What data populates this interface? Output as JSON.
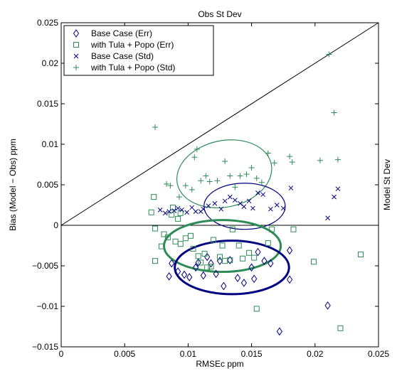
{
  "chart_data": {
    "type": "scatter",
    "title": "Obs St Dev",
    "xlabel": "RMSEc ppm",
    "ylabel": "Bias (Model − Obs) ppm",
    "y2label": "Model St Dev",
    "xlim": [
      0,
      0.025
    ],
    "ylim": [
      -0.015,
      0.025
    ],
    "xticks": [
      0,
      0.005,
      0.01,
      0.015,
      0.02,
      0.025
    ],
    "xtick_labels": [
      "0",
      "0.005",
      "0.01",
      "0.015",
      "0.02",
      "0.025"
    ],
    "yticks": [
      -0.015,
      -0.01,
      -0.005,
      0,
      0.005,
      0.01,
      0.015,
      0.02,
      0.025
    ],
    "ytick_labels": [
      "−0.015",
      "−0.01",
      "−0.005",
      "0",
      "0.005",
      "0.01",
      "0.015",
      "0.02",
      "0.025"
    ],
    "grid": false,
    "legend_position": "top-left",
    "reference_lines": [
      {
        "kind": "diagonal",
        "from": [
          0,
          0
        ],
        "to": [
          0.025,
          0.025
        ],
        "color": "#000000"
      },
      {
        "kind": "horizontal",
        "y": 0,
        "color": "#000000"
      }
    ],
    "series": [
      {
        "name": "Base Case (Err)",
        "marker": "diamond",
        "color": "#000080",
        "points": [
          [
            0.0087,
            -0.0047
          ],
          [
            0.0085,
            -0.0063
          ],
          [
            0.0092,
            -0.0057
          ],
          [
            0.0097,
            -0.0061
          ],
          [
            0.0101,
            -0.0064
          ],
          [
            0.0106,
            -0.0052
          ],
          [
            0.0108,
            -0.0046
          ],
          [
            0.0112,
            -0.0062
          ],
          [
            0.0115,
            -0.0039
          ],
          [
            0.0118,
            -0.0047
          ],
          [
            0.0122,
            -0.006
          ],
          [
            0.0125,
            -0.0044
          ],
          [
            0.0128,
            -0.0075
          ],
          [
            0.0133,
            -0.0043
          ],
          [
            0.0139,
            -0.0065
          ],
          [
            0.0144,
            -0.0071
          ],
          [
            0.015,
            -0.0052
          ],
          [
            0.0152,
            -0.0066
          ],
          [
            0.0155,
            -0.0033
          ],
          [
            0.016,
            -0.0044
          ],
          [
            0.0165,
            -0.0047
          ],
          [
            0.0172,
            -0.0131
          ],
          [
            0.018,
            -0.0031
          ],
          [
            0.018,
            -0.0067
          ],
          [
            0.021,
            -0.0099
          ]
        ]
      },
      {
        "name": "with Tula + Popo (Err)",
        "marker": "square",
        "color": "#2E8B57",
        "points": [
          [
            0.0071,
            0.0016
          ],
          [
            0.0073,
            0.0035
          ],
          [
            0.0074,
            -0.0004
          ],
          [
            0.0074,
            -0.0044
          ],
          [
            0.0079,
            -0.0026
          ],
          [
            0.0081,
            -0.0011
          ],
          [
            0.0084,
            -0.0015
          ],
          [
            0.0087,
            0.0013
          ],
          [
            0.0088,
            0.0022
          ],
          [
            0.009,
            -0.002
          ],
          [
            0.0092,
            0.0008
          ],
          [
            0.0094,
            -0.0023
          ],
          [
            0.0098,
            -0.0016
          ],
          [
            0.0102,
            -0.0013
          ],
          [
            0.0104,
            -0.0029
          ],
          [
            0.0108,
            -0.0038
          ],
          [
            0.011,
            -0.0046
          ],
          [
            0.0113,
            -0.0035
          ],
          [
            0.0115,
            -0.0052
          ],
          [
            0.0118,
            -0.0051
          ],
          [
            0.012,
            -0.0018
          ],
          [
            0.0125,
            -0.0039
          ],
          [
            0.0127,
            -0.0025
          ],
          [
            0.0129,
            -0.0044
          ],
          [
            0.0133,
            -0.0043
          ],
          [
            0.0135,
            -0.0005
          ],
          [
            0.014,
            -0.0025
          ],
          [
            0.0143,
            -0.0041
          ],
          [
            0.0148,
            -0.0034
          ],
          [
            0.0152,
            -0.004
          ],
          [
            0.0154,
            -0.0103
          ],
          [
            0.0163,
            -0.0022
          ],
          [
            0.0166,
            -0.0005
          ],
          [
            0.0183,
            -0.0005
          ],
          [
            0.0199,
            -0.0045
          ],
          [
            0.022,
            -0.0127
          ],
          [
            0.0236,
            -0.0036
          ],
          [
            0.0094,
            0.0015
          ]
        ]
      },
      {
        "name": "Base Case (Std)",
        "marker": "x",
        "color": "#000080",
        "points": [
          [
            0.0078,
            0.0019
          ],
          [
            0.0082,
            0.0015
          ],
          [
            0.0085,
            0.0017
          ],
          [
            0.0089,
            0.0018
          ],
          [
            0.0092,
            0.0021
          ],
          [
            0.0095,
            0.0019
          ],
          [
            0.0099,
            0.0016
          ],
          [
            0.0103,
            0.0022
          ],
          [
            0.0106,
            0.0017
          ],
          [
            0.011,
            0.0017
          ],
          [
            0.0112,
            0.002
          ],
          [
            0.0116,
            0.0024
          ],
          [
            0.0121,
            0.0027
          ],
          [
            0.0126,
            0.002
          ],
          [
            0.0129,
            0.003
          ],
          [
            0.0133,
            0.0035
          ],
          [
            0.0137,
            0.0031
          ],
          [
            0.0141,
            0.0027
          ],
          [
            0.0144,
            0.0023
          ],
          [
            0.0148,
            0.003
          ],
          [
            0.0151,
            0.0021
          ],
          [
            0.0155,
            0.004
          ],
          [
            0.0159,
            0.0038
          ],
          [
            0.0165,
            0.002
          ],
          [
            0.017,
            0.0025
          ],
          [
            0.0175,
            0.0021
          ],
          [
            0.0181,
            0.0046
          ],
          [
            0.021,
            0.0009
          ],
          [
            0.0215,
            0.0035
          ],
          [
            0.0218,
            0.0045
          ]
        ]
      },
      {
        "name": "with Tula + Popo (Std)",
        "marker": "plus",
        "color": "#2E8B57",
        "points": [
          [
            0.0074,
            0.0121
          ],
          [
            0.0083,
            0.0051
          ],
          [
            0.0086,
            0.0049
          ],
          [
            0.0093,
            0.0035
          ],
          [
            0.0098,
            0.0049
          ],
          [
            0.0103,
            0.0044
          ],
          [
            0.0105,
            0.0084
          ],
          [
            0.0107,
            0.0094
          ],
          [
            0.011,
            0.0055
          ],
          [
            0.0114,
            0.0061
          ],
          [
            0.0117,
            0.0054
          ],
          [
            0.0123,
            0.0055
          ],
          [
            0.0129,
            0.0079
          ],
          [
            0.0133,
            0.0061
          ],
          [
            0.0137,
            0.0047
          ],
          [
            0.0141,
            0.0061
          ],
          [
            0.0146,
            0.0063
          ],
          [
            0.015,
            0.0071
          ],
          [
            0.0154,
            0.0058
          ],
          [
            0.0158,
            0.0053
          ],
          [
            0.0163,
            0.0089
          ],
          [
            0.0168,
            0.0077
          ],
          [
            0.018,
            0.0085
          ],
          [
            0.0182,
            0.0078
          ],
          [
            0.0204,
            0.008
          ],
          [
            0.0211,
            0.0211
          ],
          [
            0.0215,
            0.0139
          ],
          [
            0.0218,
            0.0081
          ]
        ]
      }
    ],
    "ellipses": [
      {
        "series": "with Tula + Popo (Std)",
        "cx": 0.01285,
        "cy": 0.00635,
        "rx": 0.00378,
        "ry": 0.0041,
        "angle": -12,
        "color": "#2E8B57",
        "weight": "thin"
      },
      {
        "series": "Base Case (Std)",
        "cx": 0.01445,
        "cy": 0.00235,
        "rx": 0.0032,
        "ry": 0.00285,
        "angle": 0,
        "color": "#000080",
        "weight": "thin"
      },
      {
        "series": "with Tula + Popo (Err)",
        "cx": 0.0127,
        "cy": -0.00255,
        "rx": 0.0046,
        "ry": 0.0032,
        "angle": 0,
        "color": "#2E8B57",
        "weight": "thick"
      },
      {
        "series": "Base Case (Err)",
        "cx": 0.01345,
        "cy": -0.0052,
        "rx": 0.0045,
        "ry": 0.0033,
        "angle": 0,
        "color": "#000080",
        "weight": "thick"
      }
    ]
  }
}
